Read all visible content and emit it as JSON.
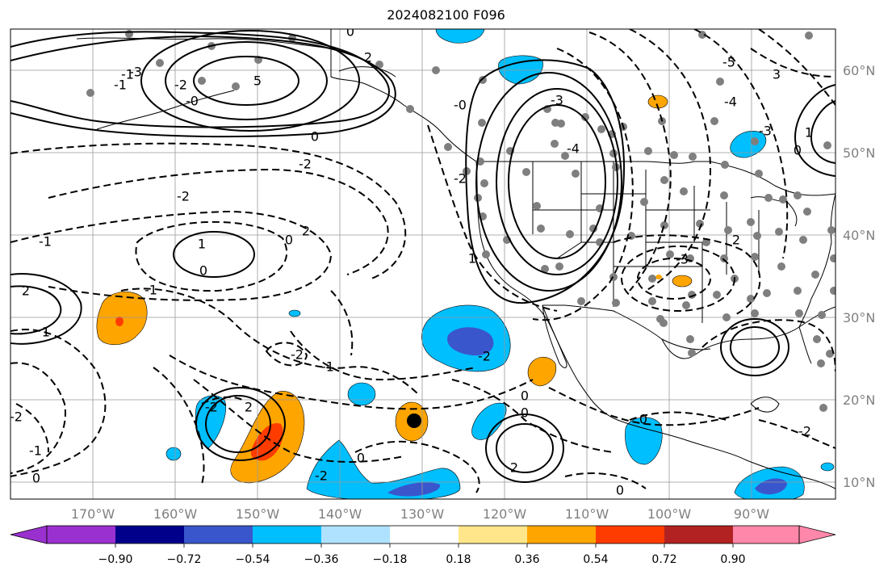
{
  "title": "2024082100 F096",
  "lat_labels": [
    "60°N",
    "50°N",
    "40°N",
    "30°N",
    "20°N",
    "10°N"
  ],
  "lon_labels": [
    "170°W",
    "160°W",
    "150°W",
    "140°W",
    "130°W",
    "120°W",
    "110°W",
    "100°W",
    "90°W"
  ],
  "colorbar": {
    "labels": [
      "−0.90",
      "−0.72",
      "−0.54",
      "−0.36",
      "−0.18",
      "0.18",
      "0.36",
      "0.54",
      "0.72",
      "0.90"
    ],
    "colors": [
      "#9b30d0",
      "#00008b",
      "#3a56cc",
      "#00bfff",
      "#aee2ff",
      "#ffffff",
      "#ffe68a",
      "#ffa500",
      "#ff3c00",
      "#b22222",
      "#ff88aa"
    ]
  },
  "contour_labels": [
    "5",
    "-1",
    "-1",
    "-2",
    "-2",
    "-3",
    "-3",
    "-4",
    "0",
    "-0",
    "0",
    "0",
    "1",
    "1",
    "-1",
    "2",
    "-2",
    "2",
    "-2",
    "2",
    "-2",
    "-1",
    "0",
    "-2",
    "0",
    "0",
    "-2",
    "-1",
    "2",
    "0",
    "-2",
    "0",
    "3",
    "1",
    "2",
    "-2",
    "-3",
    "1",
    "-1",
    "0",
    "2",
    "-0",
    "0",
    "-5",
    "-4",
    "-3",
    "-2",
    "0"
  ]
}
